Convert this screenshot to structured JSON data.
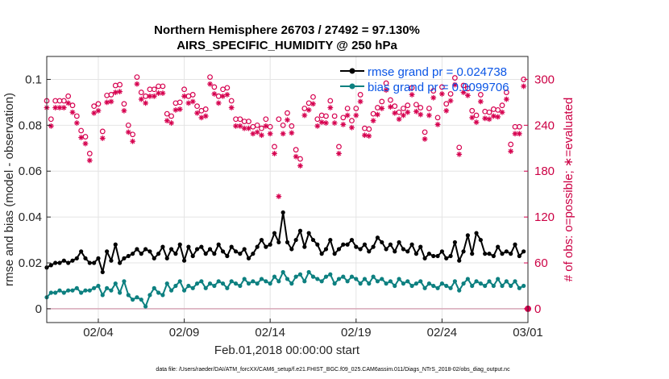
{
  "chart_data": {
    "type": "line",
    "title": "Northern Hemisphere 26703 / 27492 = 97.130%",
    "subtitle": "AIRS_SPECIFIC_HUMIDITY @ 250 hPa",
    "xlabel": "Feb.01,2018 00:00:00 start",
    "ylabel": "rmse and bias (model - observation)",
    "y2label": "# of obs: o=possible; ∗=evaluated",
    "footnote": "data file: /Users/raeder/DAI/ATM_forcXX/CAM6_setup/f.e21.FHIST_BGC.f09_025.CAM6assim.011/Diags_NTrS_2018-02/obs_diag_output.nc",
    "xlim": [
      1.0,
      29.0
    ],
    "ylim": [
      -0.006,
      0.11
    ],
    "y2lim": [
      -18,
      330
    ],
    "x_ticks": [
      4,
      9,
      14,
      19,
      24,
      29
    ],
    "x_tick_labels": [
      "02/04",
      "02/09",
      "02/14",
      "02/19",
      "02/24",
      "03/01"
    ],
    "y_ticks": [
      0,
      0.02,
      0.04,
      0.06,
      0.08,
      0.1
    ],
    "y_tick_labels": [
      "0",
      "0.02",
      "0.04",
      "0.06",
      "0.08",
      "0.1"
    ],
    "y2_ticks": [
      0,
      60,
      120,
      180,
      240,
      300
    ],
    "y2_tick_labels": [
      "0",
      "60",
      "120",
      "180",
      "240",
      "300"
    ],
    "grid": true,
    "legend_position": "top-right",
    "colors": {
      "rmse": "#000000",
      "bias": "#0d8080",
      "obs": "#d6004f",
      "zero_line": "#d8a8b8",
      "axis": "#262626",
      "legend_text": "#0a55e6"
    },
    "series": [
      {
        "name": "rmse grand pr = 0.024738",
        "legend_label": "rmse grand pr = 0.024738",
        "x": [
          1.0,
          1.25,
          1.5,
          1.75,
          2.0,
          2.25,
          2.5,
          2.75,
          3.0,
          3.25,
          3.5,
          3.75,
          4.0,
          4.25,
          4.5,
          4.75,
          5.0,
          5.25,
          5.5,
          5.75,
          6.0,
          6.25,
          6.5,
          6.75,
          7.0,
          7.25,
          7.5,
          7.75,
          8.0,
          8.25,
          8.5,
          8.75,
          9.0,
          9.25,
          9.5,
          9.75,
          10.0,
          10.25,
          10.5,
          10.75,
          11.0,
          11.25,
          11.5,
          11.75,
          12.0,
          12.25,
          12.5,
          12.75,
          13.0,
          13.25,
          13.5,
          13.75,
          14.0,
          14.25,
          14.5,
          14.75,
          15.0,
          15.25,
          15.5,
          15.75,
          16.0,
          16.25,
          16.5,
          16.75,
          17.0,
          17.25,
          17.5,
          17.75,
          18.0,
          18.25,
          18.5,
          18.75,
          19.0,
          19.25,
          19.5,
          19.75,
          20.0,
          20.25,
          20.5,
          20.75,
          21.0,
          21.25,
          21.5,
          21.75,
          22.0,
          22.25,
          22.5,
          22.75,
          23.0,
          23.25,
          23.5,
          23.75,
          24.0,
          24.25,
          24.5,
          24.75,
          25.0,
          25.25,
          25.5,
          25.75,
          26.0,
          26.25,
          26.5,
          26.75,
          27.0,
          27.25,
          27.5,
          27.75,
          28.0,
          28.25,
          28.5,
          28.75
        ],
        "values": [
          0.018,
          0.019,
          0.02,
          0.02,
          0.021,
          0.02,
          0.021,
          0.022,
          0.025,
          0.022,
          0.02,
          0.02,
          0.022,
          0.016,
          0.025,
          0.021,
          0.028,
          0.02,
          0.022,
          0.023,
          0.024,
          0.026,
          0.024,
          0.026,
          0.025,
          0.022,
          0.024,
          0.027,
          0.022,
          0.026,
          0.024,
          0.028,
          0.021,
          0.027,
          0.023,
          0.026,
          0.027,
          0.024,
          0.026,
          0.024,
          0.028,
          0.025,
          0.023,
          0.027,
          0.025,
          0.024,
          0.026,
          0.022,
          0.024,
          0.027,
          0.03,
          0.027,
          0.028,
          0.033,
          0.029,
          0.042,
          0.029,
          0.026,
          0.03,
          0.034,
          0.027,
          0.033,
          0.03,
          0.028,
          0.024,
          0.026,
          0.03,
          0.024,
          0.026,
          0.028,
          0.028,
          0.03,
          0.027,
          0.026,
          0.028,
          0.025,
          0.027,
          0.031,
          0.029,
          0.026,
          0.028,
          0.025,
          0.029,
          0.026,
          0.025,
          0.028,
          0.024,
          0.027,
          0.022,
          0.024,
          0.023,
          0.023,
          0.025,
          0.022,
          0.023,
          0.029,
          0.021,
          0.025,
          0.032,
          0.024,
          0.033,
          0.03,
          0.024,
          0.024,
          0.023,
          0.027,
          0.024,
          0.025,
          0.024,
          0.028,
          0.023,
          0.025
        ]
      },
      {
        "name": "bias grand pr = 0.0099706",
        "legend_label": "bias grand pr = 0.0099706",
        "x": [
          1.0,
          1.25,
          1.5,
          1.75,
          2.0,
          2.25,
          2.5,
          2.75,
          3.0,
          3.25,
          3.5,
          3.75,
          4.0,
          4.25,
          4.5,
          4.75,
          5.0,
          5.25,
          5.5,
          5.75,
          6.0,
          6.25,
          6.5,
          6.75,
          7.0,
          7.25,
          7.5,
          7.75,
          8.0,
          8.25,
          8.5,
          8.75,
          9.0,
          9.25,
          9.5,
          9.75,
          10.0,
          10.25,
          10.5,
          10.75,
          11.0,
          11.25,
          11.5,
          11.75,
          12.0,
          12.25,
          12.5,
          12.75,
          13.0,
          13.25,
          13.5,
          13.75,
          14.0,
          14.25,
          14.5,
          14.75,
          15.0,
          15.25,
          15.5,
          15.75,
          16.0,
          16.25,
          16.5,
          16.75,
          17.0,
          17.25,
          17.5,
          17.75,
          18.0,
          18.25,
          18.5,
          18.75,
          19.0,
          19.25,
          19.5,
          19.75,
          20.0,
          20.25,
          20.5,
          20.75,
          21.0,
          21.25,
          21.5,
          21.75,
          22.0,
          22.25,
          22.5,
          22.75,
          23.0,
          23.25,
          23.5,
          23.75,
          24.0,
          24.25,
          24.5,
          24.75,
          25.0,
          25.25,
          25.5,
          25.75,
          26.0,
          26.25,
          26.5,
          26.75,
          27.0,
          27.25,
          27.5,
          27.75,
          28.0,
          28.25,
          28.5,
          28.75
        ],
        "values": [
          0.005,
          0.007,
          0.007,
          0.008,
          0.007,
          0.008,
          0.008,
          0.009,
          0.007,
          0.008,
          0.008,
          0.009,
          0.01,
          0.006,
          0.009,
          0.008,
          0.011,
          0.007,
          0.012,
          0.006,
          0.004,
          0.005,
          0.004,
          0.001,
          0.006,
          0.009,
          0.007,
          0.006,
          0.011,
          0.008,
          0.01,
          0.012,
          0.008,
          0.01,
          0.009,
          0.011,
          0.012,
          0.009,
          0.011,
          0.01,
          0.012,
          0.011,
          0.009,
          0.012,
          0.011,
          0.01,
          0.013,
          0.011,
          0.012,
          0.011,
          0.013,
          0.012,
          0.011,
          0.014,
          0.012,
          0.016,
          0.013,
          0.011,
          0.014,
          0.015,
          0.012,
          0.016,
          0.014,
          0.013,
          0.012,
          0.014,
          0.015,
          0.011,
          0.013,
          0.014,
          0.012,
          0.014,
          0.013,
          0.011,
          0.013,
          0.011,
          0.014,
          0.012,
          0.013,
          0.011,
          0.012,
          0.01,
          0.013,
          0.011,
          0.012,
          0.01,
          0.011,
          0.012,
          0.009,
          0.011,
          0.01,
          0.009,
          0.011,
          0.01,
          0.009,
          0.012,
          0.008,
          0.011,
          0.013,
          0.01,
          0.012,
          0.011,
          0.01,
          0.012,
          0.01,
          0.013,
          0.01,
          0.012,
          0.01,
          0.012,
          0.009,
          0.01
        ]
      },
      {
        "name": "# of obs possible",
        "marker": "o",
        "x": [
          1.0,
          1.25,
          1.5,
          1.75,
          2.0,
          2.25,
          2.5,
          2.75,
          3.0,
          3.25,
          3.5,
          3.75,
          4.0,
          4.25,
          4.5,
          4.75,
          5.0,
          5.25,
          5.5,
          5.75,
          6.0,
          6.25,
          6.5,
          6.75,
          7.0,
          7.25,
          7.5,
          7.75,
          8.0,
          8.25,
          8.5,
          8.75,
          9.0,
          9.25,
          9.5,
          9.75,
          10.0,
          10.25,
          10.5,
          10.75,
          11.0,
          11.25,
          11.5,
          11.75,
          12.0,
          12.25,
          12.5,
          12.75,
          13.0,
          13.25,
          13.5,
          13.75,
          14.0,
          14.25,
          14.5,
          14.75,
          15.0,
          15.25,
          15.5,
          15.75,
          16.0,
          16.25,
          16.5,
          16.75,
          17.0,
          17.25,
          17.5,
          17.75,
          18.0,
          18.25,
          18.5,
          18.75,
          19.0,
          19.25,
          19.5,
          19.75,
          20.0,
          20.25,
          20.5,
          20.75,
          21.0,
          21.25,
          21.5,
          21.75,
          22.0,
          22.25,
          22.5,
          22.75,
          23.0,
          23.25,
          23.5,
          23.75,
          24.0,
          24.25,
          24.5,
          24.75,
          25.0,
          25.25,
          25.5,
          25.75,
          26.0,
          26.25,
          26.5,
          26.75,
          27.0,
          27.25,
          27.5,
          27.75,
          28.0,
          28.25,
          28.5,
          28.75
        ],
        "values": [
          272,
          248,
          272,
          272,
          272,
          278,
          266,
          252,
          233,
          225,
          203,
          265,
          268,
          232,
          279,
          280,
          292,
          293,
          268,
          240,
          228,
          303,
          283,
          278,
          287,
          287,
          291,
          291,
          255,
          252,
          269,
          270,
          287,
          278,
          280,
          265,
          259,
          261,
          303,
          290,
          278,
          287,
          289,
          272,
          248,
          248,
          245,
          245,
          238,
          240,
          236,
          248,
          238,
          212,
          248,
          240,
          256,
          239,
          208,
          196,
          262,
          269,
          277,
          248,
          253,
          252,
          272,
          252,
          212,
          250,
          262,
          246,
          262,
          280,
          236,
          235,
          255,
          263,
          271,
          295,
          273,
          265,
          257,
          262,
          266,
          289,
          267,
          263,
          231,
          262,
          285,
          250,
          290,
          268,
          281,
          302,
          211,
          292,
          288,
          259,
          253,
          280,
          258,
          257,
          261,
          260,
          266,
          283,
          215,
          238,
          238,
          300
        ],
        "ylabel_axis": "right"
      },
      {
        "name": "# of obs evaluated",
        "marker": "*",
        "x": [
          1.0,
          1.25,
          1.5,
          1.75,
          2.0,
          2.25,
          2.5,
          2.75,
          3.0,
          3.25,
          3.5,
          3.75,
          4.0,
          4.25,
          4.5,
          4.75,
          5.0,
          5.25,
          5.5,
          5.75,
          6.0,
          6.25,
          6.5,
          6.75,
          7.0,
          7.25,
          7.5,
          7.75,
          8.0,
          8.25,
          8.5,
          8.75,
          9.0,
          9.25,
          9.5,
          9.75,
          10.0,
          10.25,
          10.5,
          10.75,
          11.0,
          11.25,
          11.5,
          11.75,
          12.0,
          12.25,
          12.5,
          12.75,
          13.0,
          13.25,
          13.5,
          13.75,
          14.0,
          14.25,
          14.5,
          14.75,
          15.0,
          15.25,
          15.5,
          15.75,
          16.0,
          16.25,
          16.5,
          16.75,
          17.0,
          17.25,
          17.5,
          17.75,
          18.0,
          18.25,
          18.5,
          18.75,
          19.0,
          19.25,
          19.5,
          19.75,
          20.0,
          20.25,
          20.5,
          20.75,
          21.0,
          21.25,
          21.5,
          21.75,
          22.0,
          22.25,
          22.5,
          22.75,
          23.0,
          23.25,
          23.5,
          23.75,
          24.0,
          24.25,
          24.5,
          24.75,
          25.0,
          25.25,
          25.5,
          25.75,
          26.0,
          26.25,
          26.5,
          26.75,
          27.0,
          27.25,
          27.5,
          27.75,
          28.0,
          28.25,
          28.5,
          28.75
        ],
        "values": [
          263,
          239,
          263,
          263,
          263,
          269,
          257,
          243,
          224,
          216,
          194,
          256,
          259,
          223,
          270,
          271,
          283,
          284,
          259,
          231,
          219,
          294,
          274,
          269,
          278,
          278,
          282,
          282,
          246,
          243,
          260,
          261,
          278,
          269,
          271,
          256,
          250,
          252,
          294,
          281,
          269,
          278,
          280,
          263,
          239,
          239,
          236,
          236,
          229,
          231,
          227,
          239,
          229,
          203,
          147,
          229,
          247,
          230,
          199,
          187,
          253,
          260,
          268,
          239,
          244,
          243,
          263,
          243,
          203,
          241,
          253,
          237,
          253,
          271,
          227,
          226,
          246,
          254,
          262,
          286,
          264,
          256,
          248,
          253,
          257,
          280,
          258,
          254,
          222,
          253,
          276,
          241,
          281,
          259,
          272,
          293,
          202,
          283,
          279,
          250,
          244,
          271,
          249,
          248,
          252,
          251,
          257,
          274,
          206,
          229,
          229,
          291
        ],
        "ylabel_axis": "right"
      }
    ]
  }
}
